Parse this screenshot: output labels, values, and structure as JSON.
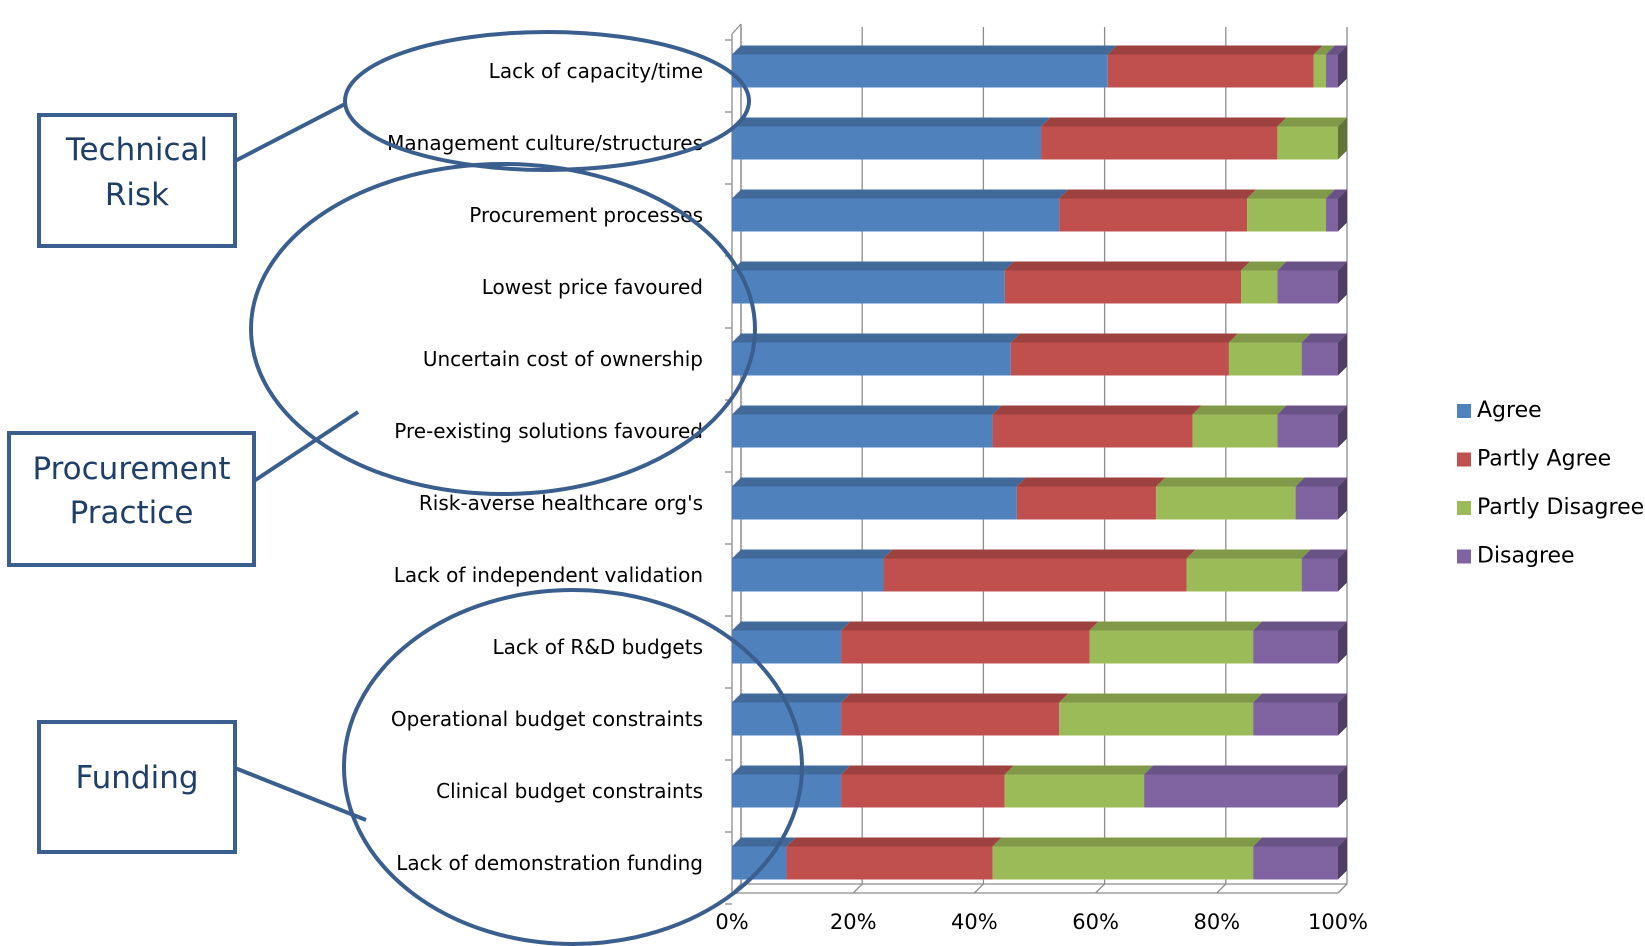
{
  "chart_data": {
    "type": "bar",
    "orientation": "horizontal",
    "stacked": "percent",
    "categories": [
      "Lack of capacity/time",
      "Management culture/structures",
      "Procurement processes",
      "Lowest price favoured",
      "Uncertain cost of ownership",
      "Pre-existing solutions favoured",
      "Risk-averse healthcare org's",
      "Lack of independent validation",
      "Lack of R&D budgets",
      "Operational budget constraints",
      "Clinical budget constraints",
      "Lack of demonstration funding"
    ],
    "series": [
      {
        "name": "Agree",
        "color": "#4f81bd",
        "values": [
          62,
          51,
          54,
          45,
          46,
          43,
          47,
          25,
          18,
          18,
          18,
          9
        ]
      },
      {
        "name": "Partly Agree",
        "color": "#c0504d",
        "values": [
          34,
          39,
          31,
          39,
          36,
          33,
          23,
          50,
          41,
          36,
          27,
          34
        ]
      },
      {
        "name": "Partly Disagree",
        "color": "#9bbb59",
        "values": [
          2,
          10,
          13,
          6,
          12,
          14,
          23,
          19,
          27,
          32,
          23,
          43
        ]
      },
      {
        "name": "Disagree",
        "color": "#8064a2",
        "values": [
          2,
          0,
          2,
          10,
          6,
          10,
          7,
          6,
          14,
          14,
          32,
          14
        ]
      }
    ],
    "x_ticks": [
      "0%",
      "20%",
      "40%",
      "60%",
      "80%",
      "100%"
    ],
    "xlim": [
      0,
      100
    ],
    "grid": true,
    "legend_position": "right",
    "annotations": [
      {
        "label": "Technical Risk",
        "lines": [
          "Technical",
          "Risk"
        ],
        "covers": [
          "Lack of capacity/time",
          "Management culture/structures"
        ]
      },
      {
        "label": "Procurement Practice",
        "lines": [
          "Procurement",
          "Practice"
        ],
        "covers": [
          "Procurement processes",
          "Lowest price favoured",
          "Uncertain cost of ownership",
          "Pre-existing solutions favoured"
        ]
      },
      {
        "label": "Funding",
        "lines": [
          "Funding"
        ],
        "covers": [
          "Lack of R&D budgets",
          "Operational budget constraints",
          "Clinical budget constraints",
          "Lack of demonstration funding"
        ]
      }
    ],
    "annotation_color": "#3a5f8f"
  }
}
